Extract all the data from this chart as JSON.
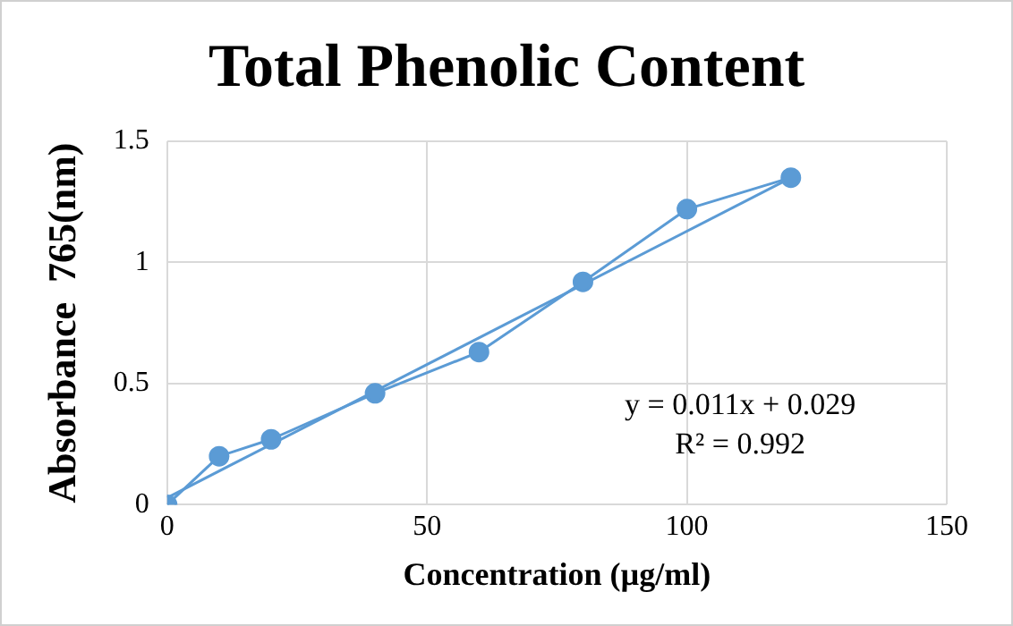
{
  "chart_data": {
    "type": "line",
    "title": "Total Phenolic Content",
    "xlabel": "Concentration (µg/ml)",
    "ylabel": "Absorbance  765(nm)",
    "x": [
      0,
      10,
      20,
      40,
      60,
      80,
      100,
      120
    ],
    "series": [
      {
        "color": "#5b9bd5",
        "values": [
          0,
          0.2,
          0.27,
          0.46,
          0.63,
          0.92,
          1.22,
          1.35
        ],
        "marker": "circle"
      },
      {
        "color": "#5b9bd5",
        "x": [
          0,
          120
        ],
        "values": [
          0.029,
          1.349
        ],
        "marker": "none"
      }
    ],
    "xlim": [
      0,
      150
    ],
    "xticks": [
      0,
      50,
      100,
      150
    ],
    "ylim": [
      0,
      1.5
    ],
    "yticks": [
      0,
      0.5,
      1,
      1.5
    ],
    "grid": true,
    "legend": false,
    "annotations": [
      "y = 0.011x + 0.029",
      "R² = 0.992"
    ]
  }
}
